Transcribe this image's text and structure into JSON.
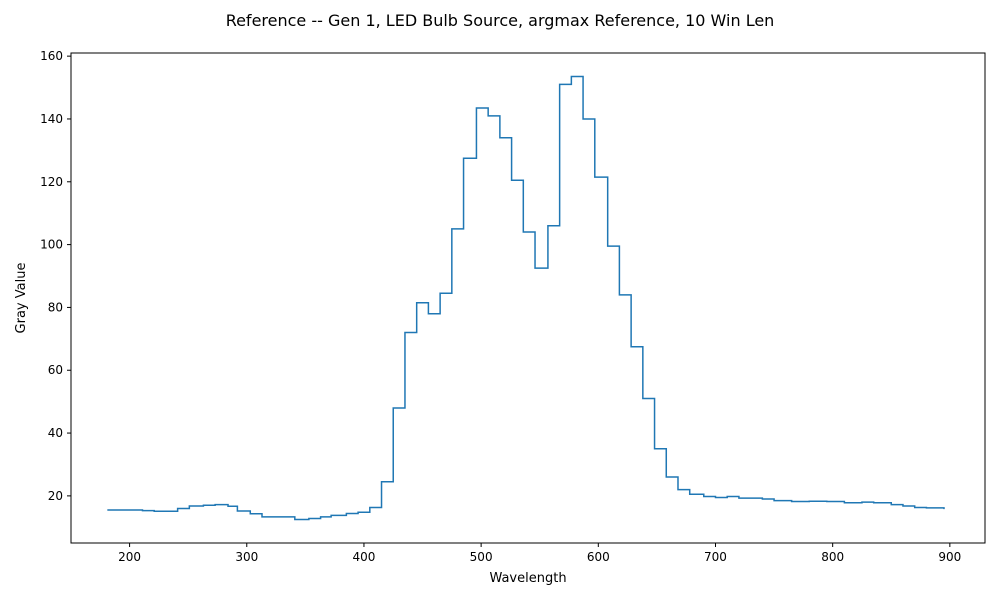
{
  "chart_data": {
    "type": "line",
    "step": "post",
    "title": "Reference -- Gen 1, LED Bulb Source, argmax Reference, 10 Win Len",
    "xlabel": "Wavelength",
    "ylabel": "Gray Value",
    "xlim": [
      150,
      930
    ],
    "ylim": [
      5,
      161
    ],
    "xticks": [
      200,
      300,
      400,
      500,
      600,
      700,
      800,
      900
    ],
    "yticks": [
      20,
      40,
      60,
      80,
      100,
      120,
      140,
      160
    ],
    "grid": false,
    "legend": "none",
    "series": [
      {
        "color": "#1f77b4",
        "x": [
          181,
          211,
          221,
          241,
          251,
          263,
          273,
          284,
          292,
          303,
          313,
          341,
          353,
          363,
          372,
          385,
          395,
          405,
          415,
          425,
          435,
          445,
          455,
          465,
          475,
          485,
          496,
          506,
          516,
          526,
          536,
          546,
          557,
          567,
          577,
          587,
          597,
          608,
          618,
          628,
          638,
          648,
          658,
          668,
          678,
          690,
          700,
          710,
          720,
          740,
          750,
          765,
          780,
          795,
          810,
          825,
          835,
          850,
          860,
          870,
          880,
          895
        ],
        "y": [
          15.5,
          15.3,
          15.1,
          16,
          16.8,
          17,
          17.2,
          16.7,
          15.2,
          14.3,
          13.3,
          12.5,
          12.8,
          13.3,
          13.8,
          14.4,
          14.8,
          16.3,
          24.5,
          48,
          72,
          81.5,
          78,
          84.5,
          105,
          127.5,
          143.5,
          141,
          134,
          120.5,
          104,
          92.5,
          106,
          151,
          153.5,
          140,
          121.5,
          99.5,
          84,
          67.5,
          51,
          35,
          26,
          22,
          20.5,
          19.8,
          19.5,
          19.8,
          19.3,
          19,
          18.5,
          18.2,
          18.3,
          18.2,
          17.8,
          18,
          17.8,
          17.2,
          16.8,
          16.3,
          16.2,
          15.8
        ]
      }
    ]
  }
}
